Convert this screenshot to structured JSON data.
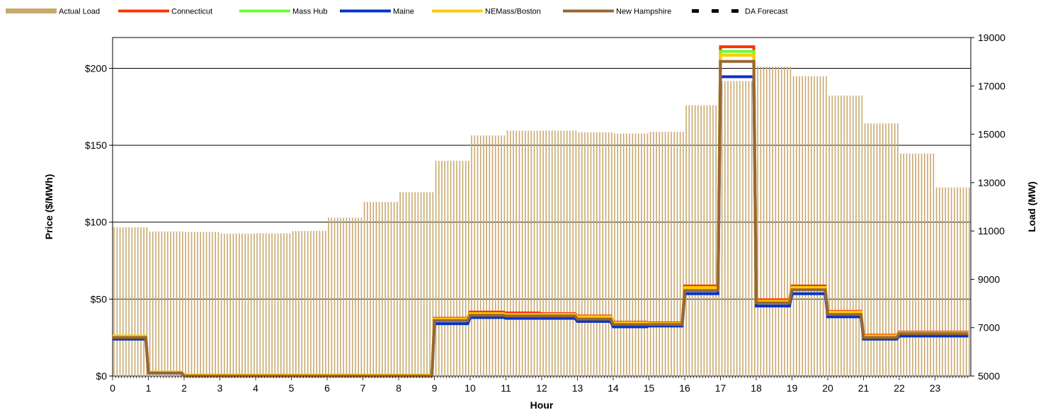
{
  "chart_data": {
    "type": "line",
    "xlabel": "Hour",
    "ylabel_left": "Price ($/MWh)",
    "ylabel_right": "Load (MW)",
    "x_ticks": [
      "0",
      "1",
      "2",
      "3",
      "4",
      "5",
      "6",
      "7",
      "8",
      "9",
      "10",
      "11",
      "12",
      "13",
      "14",
      "15",
      "16",
      "17",
      "18",
      "19",
      "20",
      "21",
      "22",
      "23"
    ],
    "y_left": {
      "min": 0,
      "max": 220,
      "ticks": [
        0,
        50,
        100,
        150,
        200
      ],
      "tick_labels": [
        "$0",
        "$50",
        "$100",
        "$150",
        "$200"
      ]
    },
    "y_right": {
      "min": 5000,
      "max": 19000,
      "ticks": [
        5000,
        7000,
        9000,
        11000,
        13000,
        15000,
        17000,
        19000
      ],
      "tick_labels": [
        "5000",
        "7000",
        "9000",
        "11000",
        "13000",
        "15000",
        "17000",
        "19000"
      ]
    },
    "grid": "horizontal",
    "legend": [
      {
        "name": "Actual Load",
        "color": "#c8a96e",
        "style": "bar"
      },
      {
        "name": "Connecticut",
        "color": "#ff3300",
        "style": "line"
      },
      {
        "name": "Mass Hub",
        "color": "#66ff33",
        "style": "line"
      },
      {
        "name": "Maine",
        "color": "#0033cc",
        "style": "line"
      },
      {
        "name": "NEMass/Boston",
        "color": "#ffcc00",
        "style": "line"
      },
      {
        "name": "New Hampshire",
        "color": "#996633",
        "style": "line"
      },
      {
        "name": "DA Forecast",
        "color": "#000000",
        "style": "dashed"
      }
    ],
    "load_by_hour": [
      11150,
      10980,
      10960,
      10890,
      10900,
      11000,
      11550,
      12200,
      12600,
      13900,
      14950,
      15150,
      15150,
      15080,
      15030,
      15100,
      16200,
      17200,
      17800,
      17400,
      16600,
      15450,
      14200,
      12800
    ],
    "series": [
      {
        "name": "Connecticut",
        "color": "#ff3300",
        "values": [
          26,
          2.5,
          0.5,
          0.5,
          0.5,
          0.5,
          0.5,
          0.5,
          0.5,
          37.5,
          41.5,
          41,
          40.5,
          39,
          35,
          34.5,
          58.5,
          214,
          49.5,
          58.5,
          42,
          26.5,
          28.5,
          28.5
        ]
      },
      {
        "name": "Mass Hub",
        "color": "#66ff33",
        "values": [
          25.5,
          2.5,
          0.5,
          0.5,
          0.5,
          0.5,
          0.5,
          0.5,
          0.5,
          37,
          40.5,
          40,
          39.5,
          38,
          34.5,
          34,
          57,
          211,
          48.5,
          57.5,
          41,
          26,
          28,
          28
        ]
      },
      {
        "name": "Maine",
        "color": "#0033cc",
        "values": [
          24,
          2,
          0,
          0,
          0,
          0,
          0,
          0,
          0,
          34,
          38,
          37.5,
          37.5,
          35.5,
          32,
          32.5,
          53.5,
          194.5,
          45.5,
          53.5,
          38.5,
          24,
          26,
          26
        ]
      },
      {
        "name": "NEMass/Boston",
        "color": "#ffcc00",
        "values": [
          26,
          2.5,
          0.5,
          0.5,
          0.5,
          0.5,
          0.5,
          0.5,
          0.5,
          37,
          40.5,
          40,
          40,
          38.5,
          34.5,
          34,
          57.5,
          208.5,
          48.5,
          57.5,
          41.5,
          26,
          28,
          28
        ]
      },
      {
        "name": "New Hampshire",
        "color": "#996633",
        "values": [
          25,
          2,
          0,
          0,
          0,
          0,
          0,
          0,
          0,
          36,
          39.5,
          39,
          39,
          37,
          33.5,
          33.5,
          55.5,
          204.5,
          47.5,
          56,
          40,
          25,
          27.5,
          27.5
        ]
      }
    ]
  }
}
